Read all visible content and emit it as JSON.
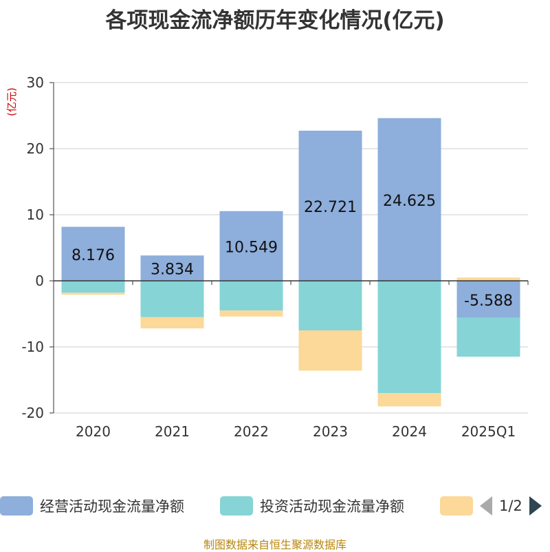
{
  "title": "各项现金流净额历年变化情况(亿元)",
  "source_note": "制图数据来自恒生聚源数据库",
  "legend": {
    "items": [
      {
        "label": "经营活动现金流量净额",
        "color": "#8eaedb"
      },
      {
        "label": "投资活动现金流量净额",
        "color": "#86d4d6"
      },
      {
        "label": "",
        "color": "#fcd899"
      }
    ],
    "page": "1/2"
  },
  "chart_data": {
    "type": "bar",
    "stacked": true,
    "categories": [
      "2020",
      "2021",
      "2022",
      "2023",
      "2024",
      "2025Q1"
    ],
    "ylabel": "(亿元)",
    "ylim": [
      -20,
      30
    ],
    "yticks": [
      -20,
      -10,
      0,
      10,
      20,
      30
    ],
    "grid": true,
    "legend_position": "bottom",
    "series": [
      {
        "name": "经营活动现金流量净额",
        "color": "#8eaedb",
        "values": [
          8.176,
          3.834,
          10.549,
          22.721,
          24.625,
          -5.588
        ],
        "labels": true
      },
      {
        "name": "投资活动现金流量净额",
        "color": "#86d4d6",
        "values": [
          -1.8,
          -5.5,
          -4.5,
          -7.5,
          -17.0,
          -5.9
        ],
        "labels": false
      },
      {
        "name": "",
        "color": "#fcd899",
        "values": [
          -0.3,
          -1.7,
          -0.9,
          -6.1,
          -2.0,
          0.5
        ],
        "labels": false
      }
    ]
  }
}
